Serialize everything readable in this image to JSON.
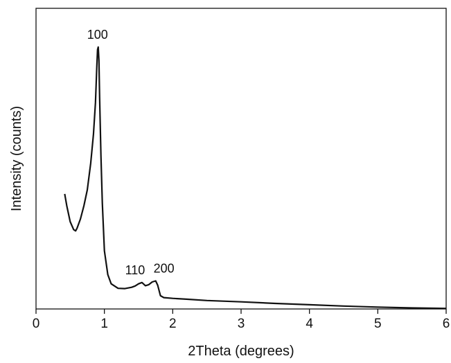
{
  "chart_data": {
    "type": "line",
    "title": "",
    "xlabel": "2Theta (degrees)",
    "ylabel": "Intensity (counts)",
    "xlim": [
      0,
      6
    ],
    "ylim": [
      0,
      1
    ],
    "x_ticks": [
      "0",
      "1",
      "2",
      "3",
      "4",
      "5",
      "6"
    ],
    "y_ticks_shown": false,
    "grid": false,
    "legend": "none",
    "line_color": "#111111",
    "series": [
      {
        "x": [
          0.42,
          0.45,
          0.5,
          0.55,
          0.58,
          0.6,
          0.65,
          0.7,
          0.75,
          0.8,
          0.84,
          0.87,
          0.89,
          0.9,
          0.91,
          0.92,
          0.93,
          0.95,
          0.97,
          1.0,
          1.05,
          1.1,
          1.2,
          1.3,
          1.4,
          1.45,
          1.5,
          1.55,
          1.6,
          1.65,
          1.7,
          1.75,
          1.78,
          1.82,
          1.87,
          2.0,
          2.2,
          2.5,
          3.0,
          3.5,
          4.0,
          4.5,
          5.0,
          5.5,
          6.0
        ],
        "y": [
          0.435,
          0.39,
          0.33,
          0.3,
          0.295,
          0.305,
          0.34,
          0.39,
          0.45,
          0.55,
          0.66,
          0.78,
          0.92,
          0.98,
          0.99,
          0.94,
          0.8,
          0.58,
          0.4,
          0.22,
          0.13,
          0.095,
          0.078,
          0.077,
          0.082,
          0.087,
          0.095,
          0.1,
          0.088,
          0.092,
          0.102,
          0.106,
          0.09,
          0.05,
          0.043,
          0.04,
          0.037,
          0.032,
          0.027,
          0.021,
          0.016,
          0.011,
          0.007,
          0.004,
          0.002
        ]
      }
    ],
    "annotations": [
      {
        "text": "100",
        "x": 0.9,
        "y": 0.99
      },
      {
        "text": "110",
        "x": 1.55,
        "y": 0.1
      },
      {
        "text": "200",
        "x": 1.75,
        "y": 0.106
      }
    ]
  }
}
